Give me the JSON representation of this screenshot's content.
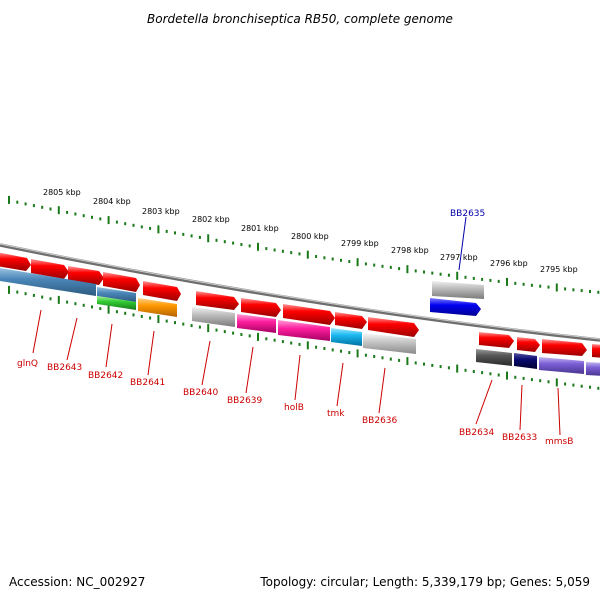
{
  "title": "Bordetella bronchiseptica RB50, complete genome",
  "accession": "Accession: NC_002927",
  "summary": "Topology: circular; Length: 5,339,179 bp; Genes: 5,059",
  "colors": {
    "tick": "#1a7a1a",
    "label_red": "#cc0000",
    "label_blue": "#0000aa",
    "backbone": "#888888"
  },
  "ruler": {
    "labels": [
      "2805 kbp",
      "2804 kbp",
      "2803 kbp",
      "2802 kbp",
      "2801 kbp",
      "2800 kbp",
      "2799 kbp",
      "2798 kbp",
      "2797 kbp",
      "2796 kbp",
      "2795 kbp"
    ]
  },
  "genes": [
    {
      "name": "glnQ",
      "color": "red"
    },
    {
      "name": "BB2643",
      "color": "red"
    },
    {
      "name": "BB2642",
      "color": "red"
    },
    {
      "name": "BB2641",
      "color": "red"
    },
    {
      "name": "BB2640",
      "color": "red"
    },
    {
      "name": "BB2639",
      "color": "red"
    },
    {
      "name": "holB",
      "color": "red"
    },
    {
      "name": "tmk",
      "color": "red"
    },
    {
      "name": "BB2636",
      "color": "red"
    },
    {
      "name": "BB2635",
      "color": "blue"
    },
    {
      "name": "BB2634",
      "color": "red"
    },
    {
      "name": "BB2633",
      "color": "red"
    },
    {
      "name": "mmsB",
      "color": "red"
    }
  ]
}
